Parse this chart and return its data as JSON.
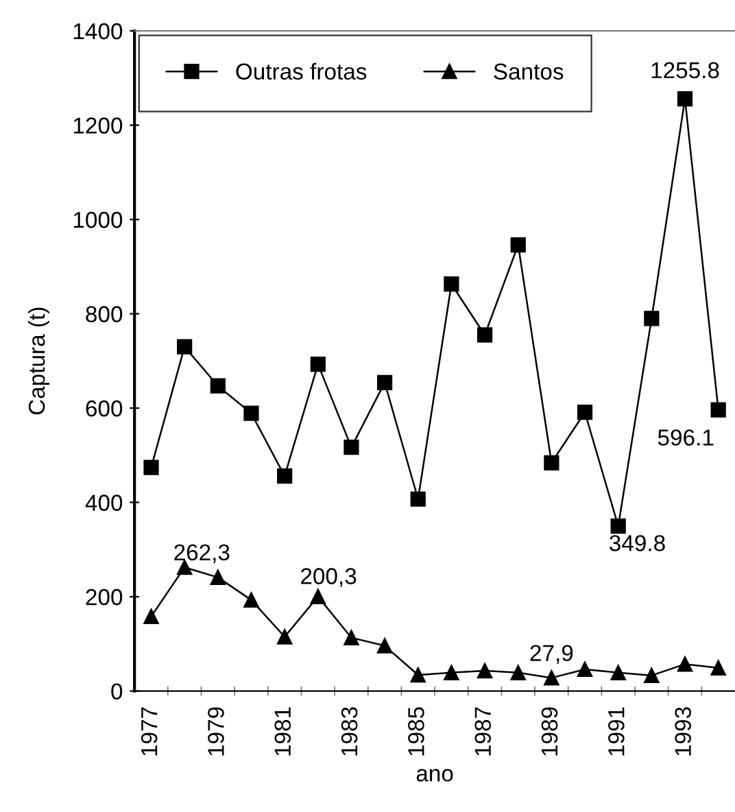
{
  "chart_data": {
    "type": "line",
    "xlabel": "ano",
    "ylabel": "Captura (t)",
    "categories": [
      "1977",
      null,
      "1979",
      null,
      "1981",
      null,
      "1983",
      null,
      "1985",
      null,
      "1987",
      null,
      "1989",
      null,
      "1991",
      null,
      "1993",
      null
    ],
    "series": [
      {
        "name": "Outras frotas",
        "color": "#000000",
        "marker": "square",
        "values": [
          474,
          730,
          647,
          589,
          456,
          693,
          517,
          654,
          407,
          863,
          755,
          946,
          484,
          591,
          349.8,
          790,
          1255.8,
          596.1
        ]
      },
      {
        "name": "Santos",
        "color": "#000000",
        "marker": "triangle",
        "values": [
          158,
          262.3,
          241,
          193,
          115,
          200.3,
          113,
          96,
          34,
          39,
          43,
          39,
          27.9,
          46,
          39,
          33,
          57,
          49
        ]
      }
    ],
    "ylim": [
      0,
      1400
    ],
    "yticks": [
      0,
      200,
      400,
      600,
      800,
      1000,
      1200,
      1400
    ],
    "annotations": [
      {
        "text": "1255.8",
        "x": "1993",
        "y": 1255.8
      },
      "596.1",
      {
        "text": "349.8",
        "x": "1991",
        "y": 349.8
      },
      "262,3",
      "200,3",
      {
        "text": "27,9",
        "x": "1989",
        "y": 27.9
      }
    ],
    "legend": "top left",
    "grid": false,
    "line_style": "solid"
  }
}
